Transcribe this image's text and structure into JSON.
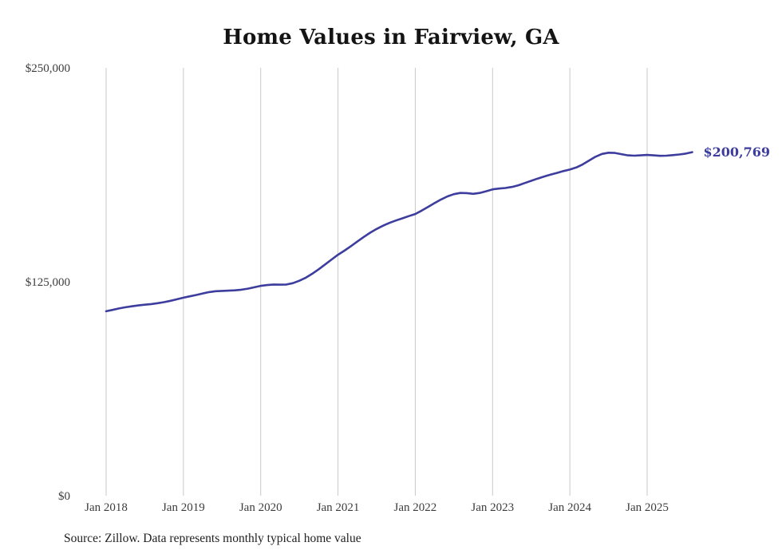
{
  "page": {
    "title": "Home Values in Fairview, GA",
    "source_note": "Source: Zillow. Data represents monthly typical home value",
    "end_value_label": "$200,769"
  },
  "colors": {
    "line": "#3d3d9e",
    "grid": "#c9c9c9",
    "tick_text": "#3d3d3d",
    "title_text": "#141414",
    "annotation": "#3d3d9e"
  },
  "chart_data": {
    "type": "line",
    "title": "Home Values in Fairview, GA",
    "xlabel": "",
    "ylabel": "",
    "ylim": [
      0,
      250000
    ],
    "grid": "vertical-only",
    "legend": "none",
    "y_ticks": [
      {
        "value": 0,
        "label": "$0"
      },
      {
        "value": 125000,
        "label": "$125,000"
      },
      {
        "value": 250000,
        "label": "$250,000"
      }
    ],
    "x_ticks": [
      "Jan 2018",
      "Jan 2019",
      "Jan 2020",
      "Jan 2021",
      "Jan 2022",
      "Jan 2023",
      "Jan 2024",
      "Jan 2025"
    ],
    "x_start_month": "2018-01",
    "months_per_tick": 12,
    "annotation": {
      "text": "$200,769",
      "at": "last-point"
    },
    "series": [
      {
        "name": "Typical home value",
        "monthly_values": [
          107800,
          108600,
          109400,
          110100,
          110700,
          111200,
          111600,
          112000,
          112500,
          113100,
          113900,
          114800,
          115700,
          116500,
          117300,
          118200,
          119000,
          119500,
          119700,
          119800,
          120000,
          120400,
          121000,
          121800,
          122600,
          123100,
          123400,
          123300,
          123400,
          124200,
          125600,
          127400,
          129700,
          132300,
          135100,
          138000,
          140800,
          143200,
          145800,
          148500,
          151200,
          153700,
          155900,
          157800,
          159400,
          160800,
          162100,
          163400,
          164600,
          166600,
          168800,
          171000,
          173100,
          174900,
          176200,
          176900,
          176800,
          176400,
          176900,
          177900,
          179000,
          179500,
          179800,
          180400,
          181400,
          182700,
          184000,
          185300,
          186500,
          187600,
          188600,
          189700,
          190600,
          191800,
          193600,
          195900,
          198100,
          199700,
          200400,
          200300,
          199600,
          198900,
          198700,
          198900,
          199100,
          198900,
          198600,
          198700,
          199000,
          199400,
          199900,
          200769
        ]
      }
    ]
  }
}
